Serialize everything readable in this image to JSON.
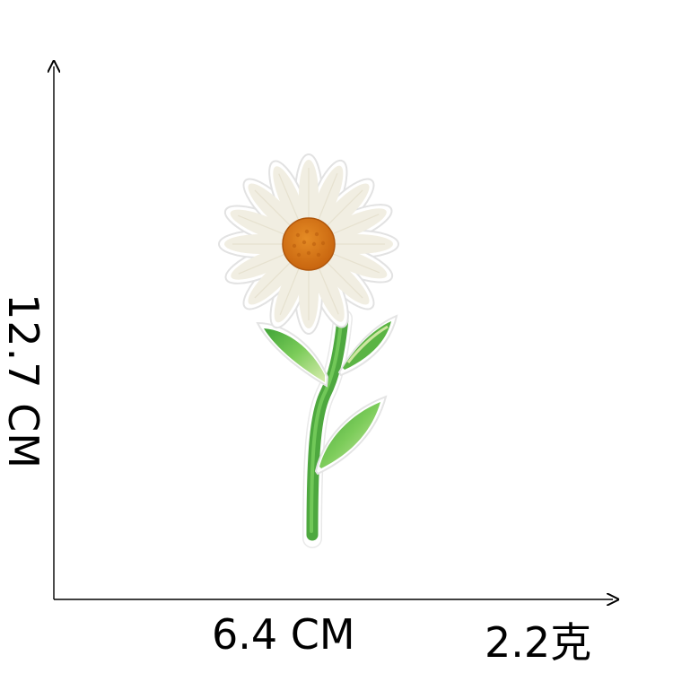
{
  "dimensions": {
    "height_label": "12.7 CM",
    "width_label": "6.4 CM",
    "weight_label": "2.2克"
  },
  "patch": {
    "subject": "daisy",
    "colors": {
      "petal": "#f4f1e6",
      "petal_edge": "#ffffff",
      "center": "#d87a18",
      "stem": "#5cb846",
      "leaf_light": "#cfe8a8",
      "outline": "#ffffff"
    }
  }
}
